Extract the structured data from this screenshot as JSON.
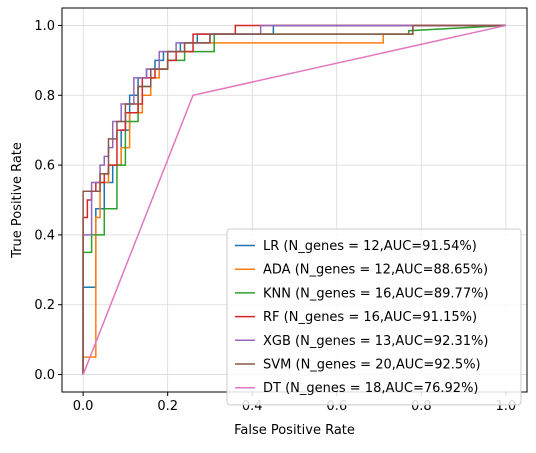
{
  "chart_data": {
    "type": "line",
    "title": "",
    "xlabel": "False Positive Rate",
    "ylabel": "True Positive Rate",
    "xlim": [
      -0.05,
      1.05
    ],
    "ylim": [
      -0.05,
      1.05
    ],
    "xticks": [
      0.0,
      0.2,
      0.4,
      0.6,
      0.8,
      1.0
    ],
    "yticks": [
      0.0,
      0.2,
      0.4,
      0.6,
      0.8,
      1.0
    ],
    "xtick_labels": [
      "0.0",
      "0.2",
      "0.4",
      "0.6",
      "0.8",
      "1.0"
    ],
    "ytick_labels": [
      "0.0",
      "0.2",
      "0.4",
      "0.6",
      "0.8",
      "1.0"
    ],
    "grid": true,
    "legend_position": "lower-right",
    "series": [
      {
        "name": "LR (N_genes = 12,AUC=91.54%)",
        "color": "#1f77b4",
        "x": [
          0,
          0,
          0.03,
          0.03,
          0.05,
          0.05,
          0.07,
          0.07,
          0.09,
          0.09,
          0.11,
          0.11,
          0.13,
          0.13,
          0.15,
          0.15,
          0.17,
          0.17,
          0.19,
          0.19,
          0.23,
          0.23,
          0.27,
          0.27,
          0.33,
          0.33,
          0.45,
          0.45,
          1.0
        ],
        "y": [
          0,
          0.25,
          0.25,
          0.475,
          0.475,
          0.55,
          0.55,
          0.6,
          0.6,
          0.7,
          0.7,
          0.8,
          0.8,
          0.85,
          0.85,
          0.875,
          0.875,
          0.9,
          0.9,
          0.925,
          0.925,
          0.95,
          0.95,
          0.975,
          0.975,
          0.975,
          0.975,
          1.0,
          1.0
        ]
      },
      {
        "name": "ADA (N_genes = 12,AUC=88.65%)",
        "color": "#ff7f0e",
        "x": [
          0,
          0,
          0.03,
          0.03,
          0.04,
          0.04,
          0.06,
          0.06,
          0.09,
          0.09,
          0.11,
          0.11,
          0.14,
          0.14,
          0.16,
          0.16,
          0.18,
          0.18,
          0.2,
          0.2,
          0.24,
          0.24,
          0.3,
          0.3,
          0.71,
          0.71,
          0.78,
          0.78,
          1.0
        ],
        "y": [
          0,
          0.05,
          0.05,
          0.45,
          0.45,
          0.55,
          0.55,
          0.6,
          0.6,
          0.65,
          0.65,
          0.75,
          0.75,
          0.8,
          0.8,
          0.85,
          0.85,
          0.875,
          0.875,
          0.925,
          0.925,
          0.95,
          0.95,
          0.95,
          0.95,
          0.975,
          0.975,
          1.0,
          1.0
        ]
      },
      {
        "name": "KNN (N_genes = 16,AUC=89.77%)",
        "color": "#2ca02c",
        "x": [
          0,
          0,
          0.02,
          0.02,
          0.05,
          0.05,
          0.08,
          0.08,
          0.1,
          0.1,
          0.13,
          0.13,
          0.16,
          0.16,
          0.2,
          0.2,
          0.24,
          0.24,
          0.31,
          0.31,
          0.62,
          0.62,
          0.77,
          0.77,
          1.0
        ],
        "y": [
          0,
          0.35,
          0.35,
          0.4,
          0.4,
          0.475,
          0.475,
          0.6,
          0.6,
          0.725,
          0.725,
          0.825,
          0.825,
          0.875,
          0.875,
          0.9,
          0.9,
          0.925,
          0.925,
          0.975,
          0.975,
          0.975,
          0.975,
          0.985,
          1.0
        ]
      },
      {
        "name": "RF (N_genes = 16,AUC=91.15%)",
        "color": "#d62728",
        "x": [
          0,
          0,
          0.01,
          0.01,
          0.02,
          0.02,
          0.03,
          0.03,
          0.05,
          0.05,
          0.06,
          0.06,
          0.08,
          0.08,
          0.1,
          0.1,
          0.13,
          0.13,
          0.14,
          0.14,
          0.17,
          0.17,
          0.2,
          0.2,
          0.22,
          0.22,
          0.26,
          0.26,
          0.36,
          0.36,
          1.0
        ],
        "y": [
          0,
          0.45,
          0.45,
          0.5,
          0.5,
          0.525,
          0.525,
          0.55,
          0.55,
          0.575,
          0.575,
          0.6,
          0.6,
          0.7,
          0.7,
          0.75,
          0.75,
          0.775,
          0.775,
          0.85,
          0.85,
          0.875,
          0.875,
          0.9,
          0.9,
          0.925,
          0.925,
          0.975,
          0.975,
          1.0,
          1.0
        ]
      },
      {
        "name": "XGB (N_genes = 13,AUC=92.31%)",
        "color": "#9467bd",
        "x": [
          0,
          0,
          0.02,
          0.02,
          0.04,
          0.04,
          0.05,
          0.05,
          0.06,
          0.06,
          0.07,
          0.07,
          0.09,
          0.09,
          0.12,
          0.12,
          0.15,
          0.15,
          0.18,
          0.18,
          0.22,
          0.22,
          0.3,
          0.3,
          0.42,
          0.42,
          1.0
        ],
        "y": [
          0,
          0.4,
          0.4,
          0.55,
          0.55,
          0.6,
          0.6,
          0.625,
          0.625,
          0.65,
          0.65,
          0.725,
          0.725,
          0.775,
          0.775,
          0.85,
          0.85,
          0.875,
          0.875,
          0.925,
          0.925,
          0.95,
          0.95,
          0.975,
          0.975,
          1.0,
          1.0
        ]
      },
      {
        "name": "SVM (N_genes = 20,AUC=92.5%)",
        "color": "#8c564b",
        "x": [
          0,
          0,
          0.04,
          0.04,
          0.06,
          0.06,
          0.08,
          0.08,
          0.1,
          0.1,
          0.13,
          0.13,
          0.16,
          0.16,
          0.2,
          0.2,
          0.24,
          0.24,
          0.3,
          0.3,
          0.78,
          0.78,
          1.0
        ],
        "y": [
          0,
          0.525,
          0.525,
          0.575,
          0.575,
          0.675,
          0.675,
          0.725,
          0.725,
          0.775,
          0.775,
          0.825,
          0.825,
          0.875,
          0.875,
          0.925,
          0.925,
          0.95,
          0.95,
          0.975,
          0.975,
          1.0,
          1.0
        ]
      },
      {
        "name": "DT (N_genes = 18,AUC=76.92%)",
        "color": "#e377c2",
        "x": [
          0,
          0.26,
          1.0
        ],
        "y": [
          0,
          0.8,
          1.0
        ]
      }
    ]
  }
}
